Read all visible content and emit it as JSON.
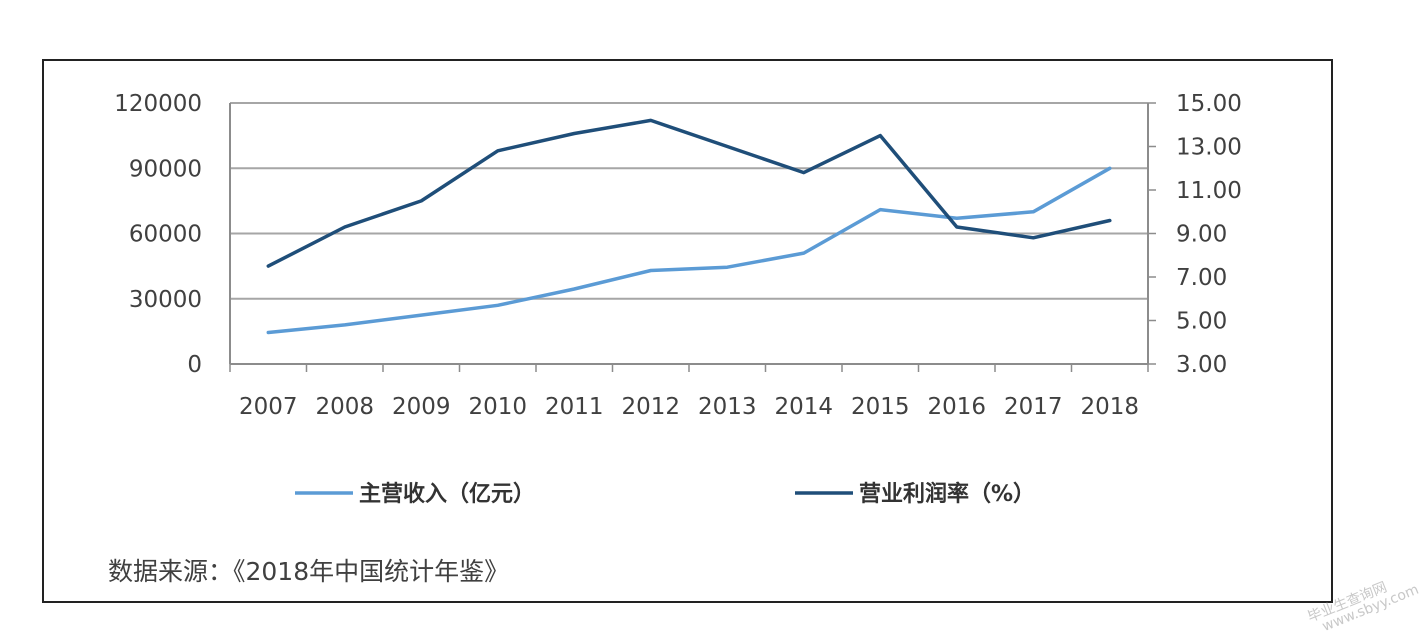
{
  "chart_data": {
    "type": "line",
    "categories": [
      "2007",
      "2008",
      "2009",
      "2010",
      "2011",
      "2012",
      "2013",
      "2014",
      "2015",
      "2016",
      "2017",
      "2018"
    ],
    "series": [
      {
        "name": "主营收入（亿元）",
        "axis": "left",
        "color": "#5b9bd5",
        "values": [
          14500,
          18000,
          22500,
          27000,
          34500,
          43000,
          44500,
          51000,
          71000,
          67000,
          70000,
          90000
        ]
      },
      {
        "name": "营业利润率（%）",
        "axis": "right",
        "color": "#1f4e79",
        "values": [
          7.5,
          9.3,
          10.5,
          12.8,
          13.6,
          14.2,
          13.0,
          11.8,
          13.5,
          9.3,
          8.8,
          9.6
        ]
      }
    ],
    "y_left": {
      "min": 0,
      "max": 120000,
      "ticks": [
        "0",
        "30000",
        "60000",
        "90000",
        "120000"
      ]
    },
    "y_right": {
      "min": 3,
      "max": 15,
      "ticks": [
        "3.00",
        "5.00",
        "7.00",
        "9.00",
        "11.00",
        "13.00",
        "15.00"
      ]
    },
    "grid": true,
    "legend_position": "bottom"
  },
  "source_text": "数据来源：《2018年中国统计年鉴》",
  "watermark": {
    "line1": "毕业生查询网",
    "line2": "www.sbyy.com"
  }
}
